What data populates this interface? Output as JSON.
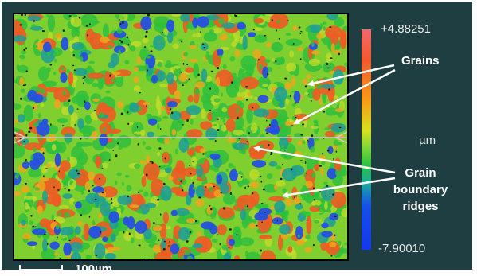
{
  "colorbar": {
    "max_label": "+4.88251",
    "unit_label": "µm",
    "min_label": "-7.90010",
    "colors": [
      "#f06a6a",
      "#f89a18",
      "#d8e020",
      "#27c13e",
      "#1ba9a0",
      "#1238ee"
    ]
  },
  "annotations": {
    "grains": "Grains",
    "grain_boundary_ridges_line1": "Grain",
    "grain_boundary_ridges_line2": "boundary",
    "grain_boundary_ridges_line3": "ridges"
  },
  "scale_bar": {
    "label": "100µm"
  },
  "surface": {
    "palette": [
      "#2fbf3c",
      "#7fcf2e",
      "#c6dc2a",
      "#f0a51c",
      "#ee5a24",
      "#1c9d97",
      "#2650e0",
      "#141414"
    ],
    "profile_line_color": "#c8c8c8"
  }
}
